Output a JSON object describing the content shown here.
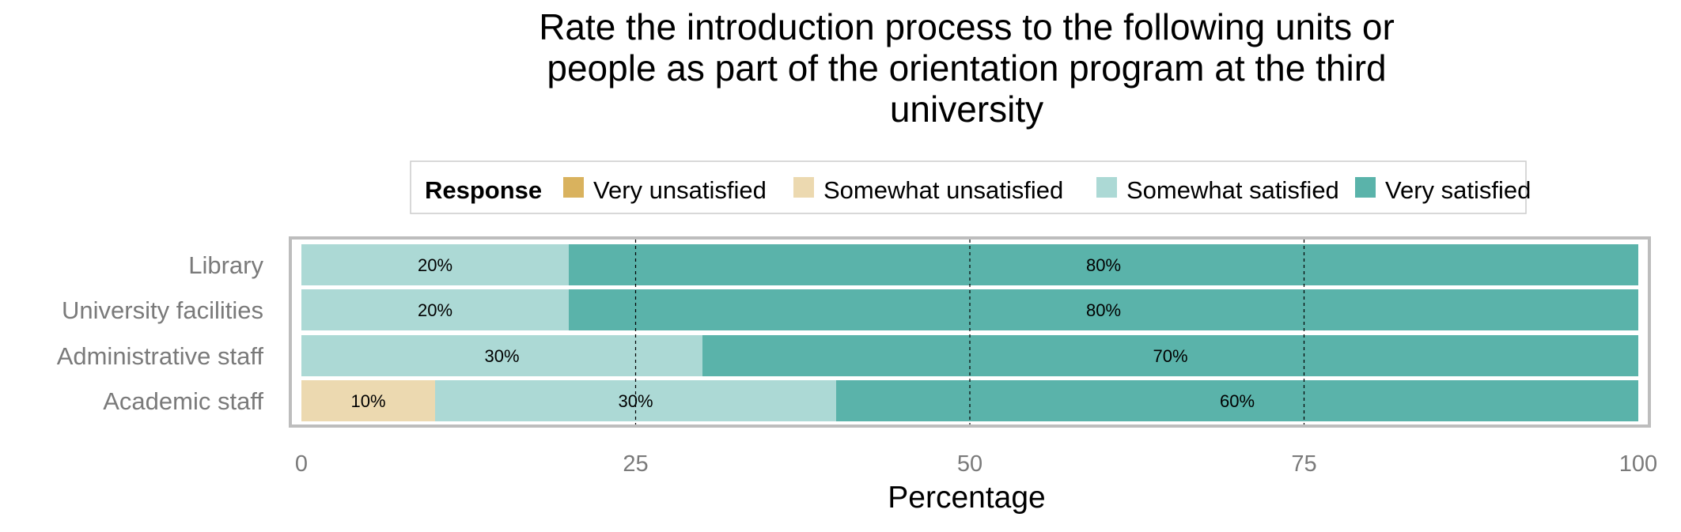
{
  "chart_data": {
    "type": "bar",
    "orientation": "horizontal",
    "stacked": true,
    "title": "Rate the introduction process to the following units or people as part of the orientation program at the third university",
    "title_lines": [
      "Rate the introduction process to the following units or",
      "people as part of the orientation program at the third",
      "university"
    ],
    "xlabel": "Percentage",
    "ylabel": "",
    "xlim": [
      0,
      100
    ],
    "x_ticks": [
      0,
      25,
      50,
      75,
      100
    ],
    "grid": "dashed vertical lines at 25, 50, 75",
    "legend": {
      "title": "Response",
      "placement": "top",
      "entries": [
        {
          "name": "Very unsatisfied",
          "color": "#D9B25E"
        },
        {
          "name": "Somewhat unsatisfied",
          "color": "#ECD9B0"
        },
        {
          "name": "Somewhat satisfied",
          "color": "#ACD9D5"
        },
        {
          "name": "Very satisfied",
          "color": "#5AB3AA"
        }
      ]
    },
    "categories": [
      "Library",
      "University facilities",
      "Administrative staff",
      "Academic staff"
    ],
    "series": [
      {
        "name": "Very unsatisfied",
        "color": "#D9B25E",
        "values": [
          0,
          0,
          0,
          0
        ]
      },
      {
        "name": "Somewhat unsatisfied",
        "color": "#ECD9B0",
        "values": [
          0,
          0,
          0,
          10
        ]
      },
      {
        "name": "Somewhat satisfied",
        "color": "#ACD9D5",
        "values": [
          20,
          20,
          30,
          30
        ]
      },
      {
        "name": "Very satisfied",
        "color": "#5AB3AA",
        "values": [
          80,
          80,
          70,
          60
        ]
      }
    ]
  }
}
